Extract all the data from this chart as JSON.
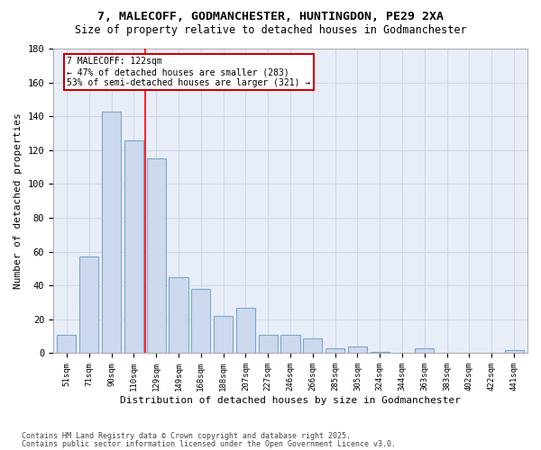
{
  "title1": "7, MALECOFF, GODMANCHESTER, HUNTINGDON, PE29 2XA",
  "title2": "Size of property relative to detached houses in Godmanchester",
  "xlabel": "Distribution of detached houses by size in Godmanchester",
  "ylabel": "Number of detached properties",
  "categories": [
    "51sqm",
    "71sqm",
    "90sqm",
    "110sqm",
    "129sqm",
    "149sqm",
    "168sqm",
    "188sqm",
    "207sqm",
    "227sqm",
    "246sqm",
    "266sqm",
    "285sqm",
    "305sqm",
    "324sqm",
    "344sqm",
    "363sqm",
    "383sqm",
    "402sqm",
    "422sqm",
    "441sqm"
  ],
  "values": [
    11,
    57,
    143,
    126,
    115,
    45,
    38,
    22,
    27,
    11,
    11,
    9,
    3,
    4,
    1,
    0,
    3,
    0,
    0,
    0,
    2
  ],
  "bar_color": "#ccd9ee",
  "bar_edge_color": "#7ca6cc",
  "red_line_index": 3.5,
  "annotation_text": "7 MALECOFF: 122sqm\n← 47% of detached houses are smaller (283)\n53% of semi-detached houses are larger (321) →",
  "annotation_box_color": "#ffffff",
  "annotation_box_edge": "#cc0000",
  "footnote1": "Contains HM Land Registry data © Crown copyright and database right 2025.",
  "footnote2": "Contains public sector information licensed under the Open Government Licence v3.0.",
  "ylim": [
    0,
    180
  ],
  "yticks": [
    0,
    20,
    40,
    60,
    80,
    100,
    120,
    140,
    160,
    180
  ],
  "grid_color": "#d0d8e8",
  "bg_color": "#e8eef8"
}
